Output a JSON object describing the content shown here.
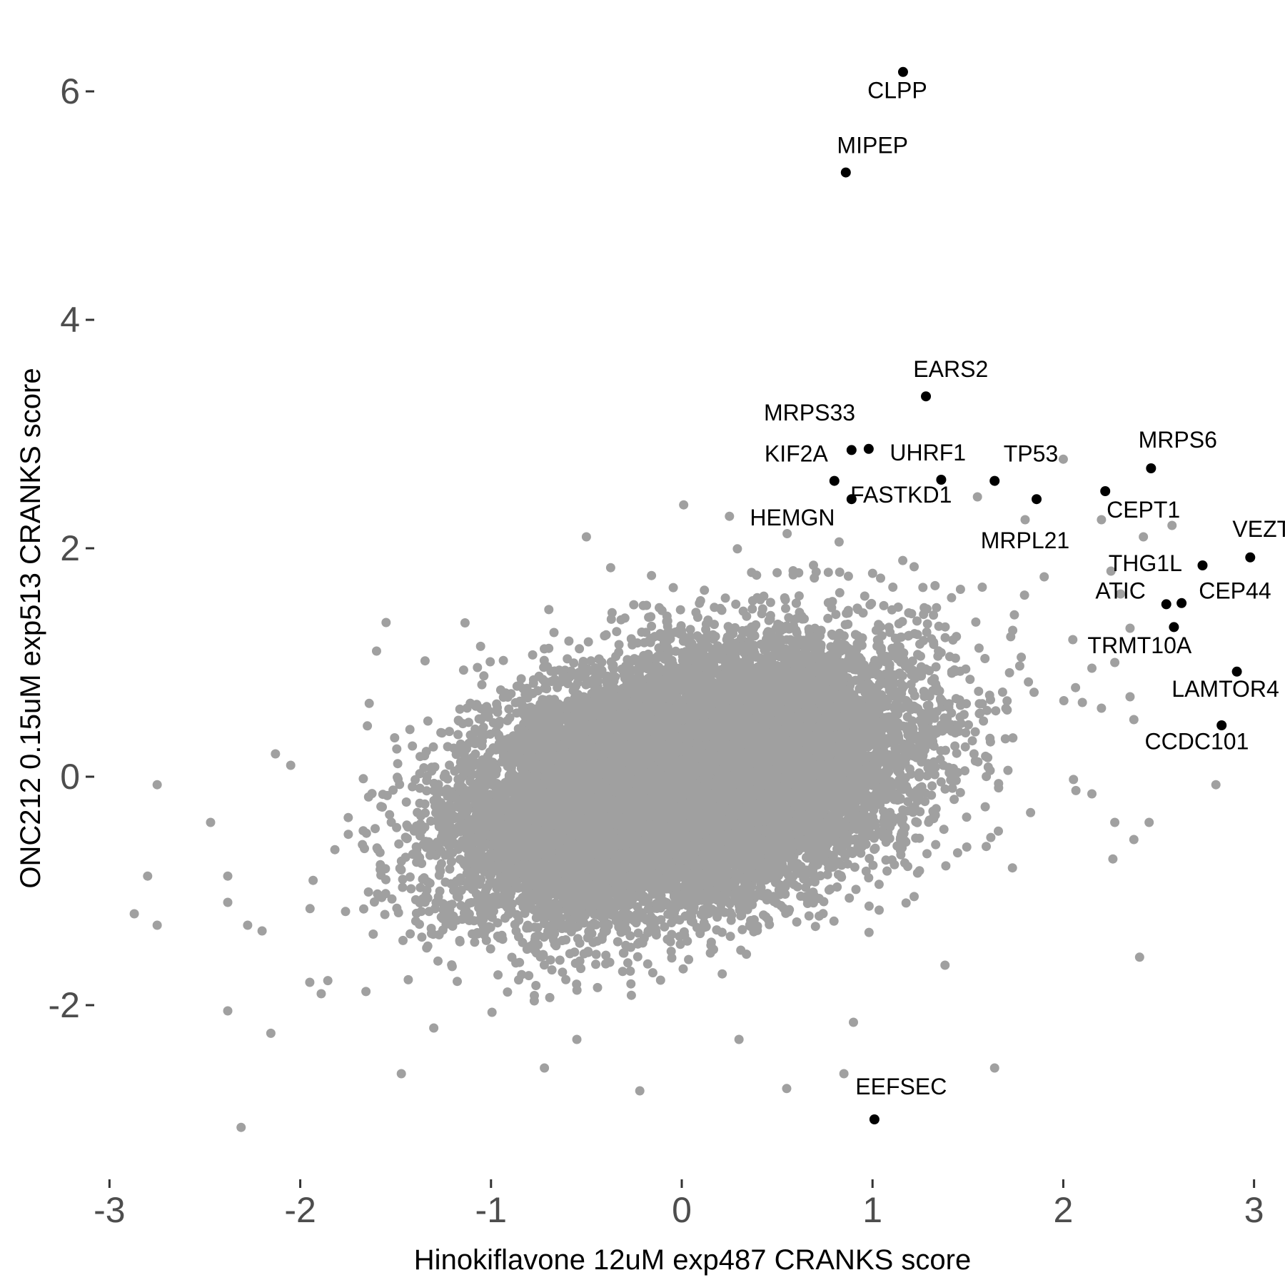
{
  "chart_data": {
    "type": "scatter",
    "xlabel": "Hinokiflavone 12uM exp487 CRANKS score",
    "ylabel": "ONC212 0.15uM exp513 CRANKS score",
    "xlim": [
      -3.05,
      3.05
    ],
    "ylim": [
      -3.45,
      6.55
    ],
    "x_ticks": [
      -3,
      -2,
      -1,
      0,
      1,
      2,
      3
    ],
    "y_ticks": [
      -2,
      0,
      2,
      4,
      6
    ],
    "grid": false,
    "background_point_color": "#a0a0a0",
    "highlight_point_color": "#000000",
    "background_cloud": {
      "description_count": 18000,
      "center": [
        0.0,
        -0.05
      ],
      "sd_x": 0.55,
      "sd_y": 0.55,
      "correlation": 0.35
    },
    "background_outliers": [
      {
        "x": -2.75,
        "y": -0.07
      },
      {
        "x": -2.8,
        "y": -0.87
      },
      {
        "x": -2.87,
        "y": -1.2
      },
      {
        "x": -2.75,
        "y": -1.3
      },
      {
        "x": -2.47,
        "y": -0.4
      },
      {
        "x": -2.38,
        "y": -2.05
      },
      {
        "x": -2.31,
        "y": -3.07
      },
      {
        "x": -2.38,
        "y": -1.1
      },
      {
        "x": -2.38,
        "y": -0.87
      },
      {
        "x": -2.2,
        "y": -1.35
      },
      {
        "x": -2.13,
        "y": 0.2
      },
      {
        "x": -2.05,
        "y": 0.1
      },
      {
        "x": -1.95,
        "y": -1.8
      },
      {
        "x": -1.89,
        "y": -1.9
      },
      {
        "x": -1.6,
        "y": 1.1
      },
      {
        "x": -1.55,
        "y": 1.35
      },
      {
        "x": -1.47,
        "y": -2.6
      },
      {
        "x": -1.3,
        "y": -2.2
      },
      {
        "x": -0.72,
        "y": -2.55
      },
      {
        "x": -0.55,
        "y": -2.3
      },
      {
        "x": -0.22,
        "y": -2.75
      },
      {
        "x": 0.3,
        "y": -2.3
      },
      {
        "x": 0.01,
        "y": 2.38
      },
      {
        "x": 0.25,
        "y": 2.28
      },
      {
        "x": -0.5,
        "y": 2.1
      },
      {
        "x": 0.55,
        "y": -2.73
      },
      {
        "x": 0.85,
        "y": -2.6
      },
      {
        "x": 0.9,
        "y": -2.15
      },
      {
        "x": 1.38,
        "y": -1.65
      },
      {
        "x": 1.64,
        "y": -2.55
      },
      {
        "x": 2.0,
        "y": 2.78
      },
      {
        "x": 2.2,
        "y": 2.25
      },
      {
        "x": 2.42,
        "y": 2.1
      },
      {
        "x": 2.57,
        "y": 2.2
      },
      {
        "x": 2.25,
        "y": 1.8
      },
      {
        "x": 2.3,
        "y": 1.6
      },
      {
        "x": 2.35,
        "y": 1.3
      },
      {
        "x": 2.27,
        "y": 1.0
      },
      {
        "x": 2.15,
        "y": 0.95
      },
      {
        "x": 2.1,
        "y": 0.65
      },
      {
        "x": 2.2,
        "y": 0.6
      },
      {
        "x": 2.37,
        "y": 0.5
      },
      {
        "x": 2.35,
        "y": 0.7
      },
      {
        "x": 2.15,
        "y": -0.15
      },
      {
        "x": 2.27,
        "y": -0.4
      },
      {
        "x": 2.37,
        "y": -0.55
      },
      {
        "x": 2.45,
        "y": -0.4
      },
      {
        "x": 2.26,
        "y": -0.72
      },
      {
        "x": 2.4,
        "y": -1.58
      },
      {
        "x": 2.8,
        "y": -0.07
      },
      {
        "x": 2.05,
        "y": 1.2
      },
      {
        "x": 1.9,
        "y": 1.75
      },
      {
        "x": 1.55,
        "y": 2.45
      },
      {
        "x": 1.8,
        "y": 2.25
      }
    ],
    "highlighted_points": [
      {
        "gene": "CLPP",
        "x": 1.16,
        "y": 6.17
      },
      {
        "gene": "MIPEP",
        "x": 0.86,
        "y": 5.29
      },
      {
        "gene": "EARS2",
        "x": 1.28,
        "y": 3.33
      },
      {
        "gene": "MRPS33",
        "x": 0.89,
        "y": 2.86
      },
      {
        "gene": "MRPS33",
        "x": 0.98,
        "y": 2.87
      },
      {
        "gene": "KIF2A",
        "x": 0.8,
        "y": 2.59
      },
      {
        "gene": "UHRF1",
        "x": 1.36,
        "y": 2.6
      },
      {
        "gene": "TP53",
        "x": 1.64,
        "y": 2.59
      },
      {
        "gene": "MRPS6",
        "x": 2.46,
        "y": 2.7
      },
      {
        "gene": "FASTKD1",
        "x": 0.89,
        "y": 2.43
      },
      {
        "gene": "MRPL21",
        "x": 1.86,
        "y": 2.43
      },
      {
        "gene": "CEPT1",
        "x": 2.22,
        "y": 2.5
      },
      {
        "gene": "THG1L",
        "x": 2.73,
        "y": 1.85
      },
      {
        "gene": "VEZT",
        "x": 2.98,
        "y": 1.92
      },
      {
        "gene": "ATIC",
        "x": 2.54,
        "y": 1.51
      },
      {
        "gene": "CEP44",
        "x": 2.62,
        "y": 1.52
      },
      {
        "gene": "TRMT10A",
        "x": 2.58,
        "y": 1.31
      },
      {
        "gene": "LAMTOR4",
        "x": 2.91,
        "y": 0.92
      },
      {
        "gene": "CCDC101",
        "x": 2.83,
        "y": 0.45
      },
      {
        "gene": "EEFSEC",
        "x": 1.01,
        "y": -3.0
      }
    ],
    "labels": [
      {
        "text": "CLPP",
        "x": 1.13,
        "y": 5.94
      },
      {
        "text": "MIPEP",
        "x": 1.0,
        "y": 5.46
      },
      {
        "text": "EARS2",
        "x": 1.41,
        "y": 3.5
      },
      {
        "text": "MRPS33",
        "x": 0.67,
        "y": 3.12
      },
      {
        "text": "KIF2A",
        "x": 0.6,
        "y": 2.76
      },
      {
        "text": "UHRF1",
        "x": 1.29,
        "y": 2.77
      },
      {
        "text": "TP53",
        "x": 1.83,
        "y": 2.76
      },
      {
        "text": "HEMGN",
        "x": 0.58,
        "y": 2.2
      },
      {
        "text": "FASTKD1",
        "x": 1.15,
        "y": 2.4
      },
      {
        "text": "MRPS6",
        "x": 2.6,
        "y": 2.88
      },
      {
        "text": "CEPT1",
        "x": 2.42,
        "y": 2.27
      },
      {
        "text": "MRPL21",
        "x": 1.8,
        "y": 2.0
      },
      {
        "text": "VEZT",
        "x": 3.04,
        "y": 2.1
      },
      {
        "text": "THG1L",
        "x": 2.43,
        "y": 1.8
      },
      {
        "text": "ATIC",
        "x": 2.3,
        "y": 1.56
      },
      {
        "text": "CEP44",
        "x": 2.9,
        "y": 1.56
      },
      {
        "text": "TRMT10A",
        "x": 2.4,
        "y": 1.08
      },
      {
        "text": "LAMTOR4",
        "x": 2.85,
        "y": 0.7
      },
      {
        "text": "CCDC101",
        "x": 2.7,
        "y": 0.24
      },
      {
        "text": "EEFSEC",
        "x": 1.15,
        "y": -2.78
      }
    ]
  }
}
